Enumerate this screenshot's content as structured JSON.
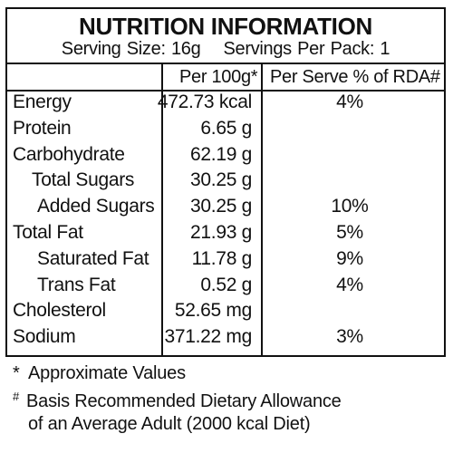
{
  "title": "NUTRITION INFORMATION",
  "serving_line": "Serving Size: 16g    Servings Per Pack: 1",
  "columns": {
    "per100g": "Per 100g*",
    "per_serve": "Per Serve % of RDA#"
  },
  "rows": [
    {
      "name": "Energy",
      "value": "472.73 kcal",
      "rda": "4%"
    },
    {
      "name": "Protein",
      "value": "6.65 g",
      "rda": ""
    },
    {
      "name": "Carbohydrate",
      "value": "62.19 g",
      "rda": ""
    },
    {
      "name": "Total Sugars",
      "value": "30.25 g",
      "rda": ""
    },
    {
      "name": "Added Sugars",
      "value": "30.25 g",
      "rda": "10%"
    },
    {
      "name": "Total Fat",
      "value": "21.93 g",
      "rda": "5%"
    },
    {
      "name": "Saturated Fat",
      "value": "11.78 g",
      "rda": "9%"
    },
    {
      "name": "Trans Fat",
      "value": "0.52 g",
      "rda": "4%"
    },
    {
      "name": "Cholesterol",
      "value": "52.65 mg",
      "rda": ""
    },
    {
      "name": "Sodium",
      "value": "371.22 mg",
      "rda": "3%"
    }
  ],
  "footnotes": {
    "approx_mark": "*",
    "approx": "Approximate Values",
    "basis_mark": "#",
    "basis_line1": "Basis Recommended Dietary Allowance",
    "basis_line2": "of an Average Adult (2000 kcal Diet)"
  }
}
